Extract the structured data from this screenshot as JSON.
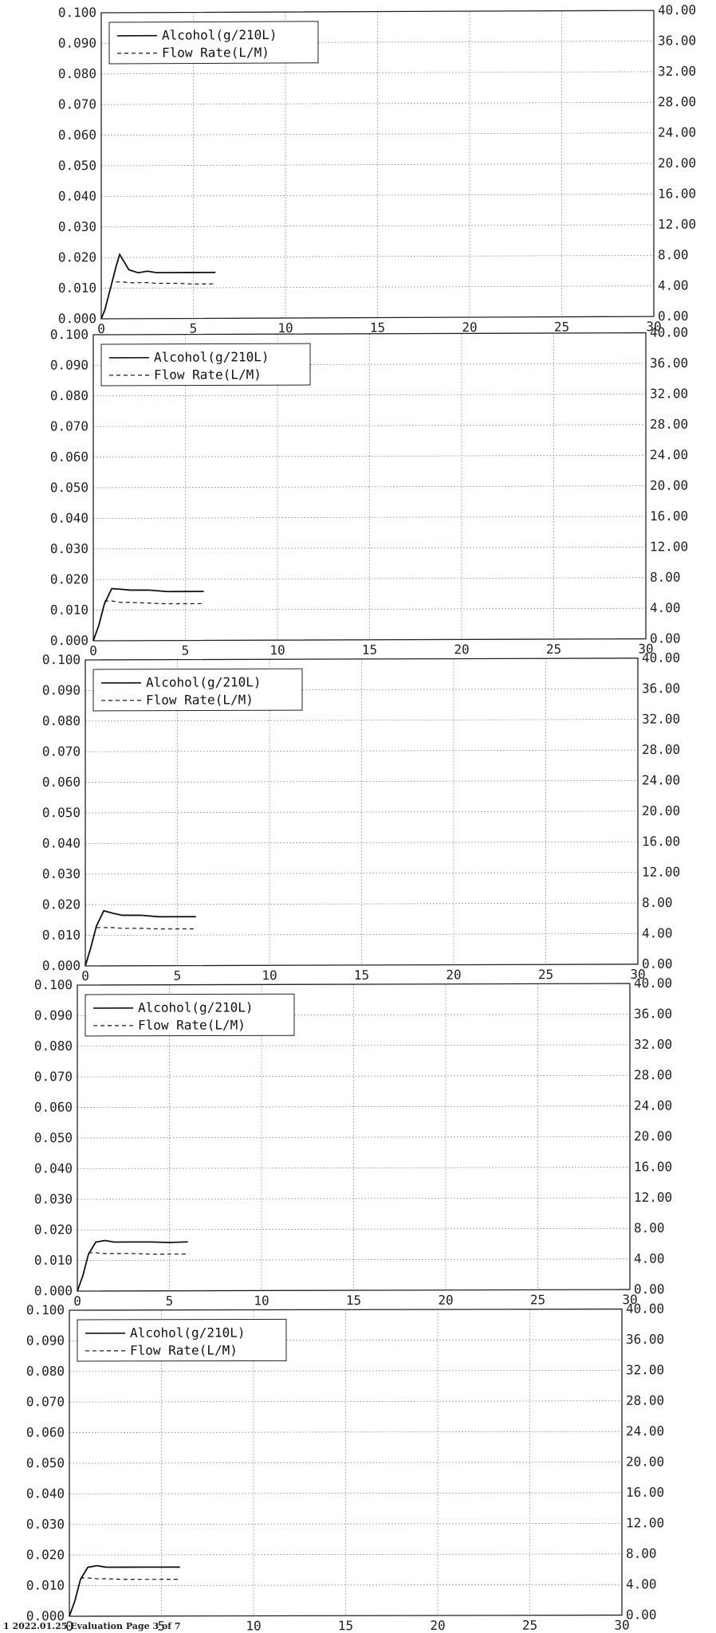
{
  "footer_text": "1 2022.01.25 Evaluation Page 3 of 7",
  "chart_data": [
    {
      "type": "line",
      "x": [
        0,
        0.2,
        0.5,
        0.8,
        1.0,
        1.2,
        1.5,
        2.0,
        2.5,
        3.0,
        4.0,
        5.0,
        6.2
      ],
      "series": [
        {
          "name": "Alcohol(g/210L)",
          "axis": "left",
          "style": "solid",
          "values": [
            0.0,
            0.003,
            0.01,
            0.017,
            0.021,
            0.019,
            0.016,
            0.015,
            0.0155,
            0.015,
            0.015,
            0.015,
            0.015
          ]
        },
        {
          "name": "Flow Rate(L/M)",
          "axis": "right",
          "style": "dashed",
          "values": [
            null,
            null,
            null,
            4.8,
            4.8,
            4.8,
            4.7,
            4.7,
            4.7,
            4.6,
            4.6,
            4.5,
            4.5
          ]
        }
      ],
      "xlim": [
        0,
        30
      ],
      "ylim_left": [
        0,
        0.1
      ],
      "ylim_right": [
        0,
        40
      ],
      "x_ticks": [
        "0",
        "5",
        "10",
        "15",
        "20",
        "25",
        "30"
      ],
      "y_left_ticks": [
        "0.000",
        "0.010",
        "0.020",
        "0.030",
        "0.040",
        "0.050",
        "0.060",
        "0.070",
        "0.080",
        "0.090",
        "0.100"
      ],
      "y_right_ticks": [
        "0.00",
        "4.00",
        "8.00",
        "12.00",
        "16.00",
        "20.00",
        "24.00",
        "28.00",
        "32.00",
        "36.00",
        "40.00"
      ],
      "grid": true,
      "legend": "top-left"
    },
    {
      "type": "line",
      "x": [
        0,
        0.3,
        0.6,
        1.0,
        1.5,
        2.0,
        3.0,
        4.0,
        5.0,
        6.0
      ],
      "series": [
        {
          "name": "Alcohol(g/210L)",
          "axis": "left",
          "style": "solid",
          "values": [
            0.0,
            0.005,
            0.012,
            0.017,
            0.0168,
            0.0165,
            0.0165,
            0.016,
            0.016,
            0.016
          ]
        },
        {
          "name": "Flow Rate(L/M)",
          "axis": "right",
          "style": "dashed",
          "values": [
            null,
            null,
            5.2,
            5.2,
            5.0,
            5.0,
            4.9,
            4.8,
            4.8,
            4.8
          ]
        }
      ],
      "xlim": [
        0,
        30
      ],
      "ylim_left": [
        0,
        0.1
      ],
      "ylim_right": [
        0,
        40
      ],
      "x_ticks": [
        "0",
        "5",
        "10",
        "15",
        "20",
        "25",
        "30"
      ],
      "y_left_ticks": [
        "0.000",
        "0.010",
        "0.020",
        "0.030",
        "0.040",
        "0.050",
        "0.060",
        "0.070",
        "0.080",
        "0.090",
        "0.100"
      ],
      "y_right_ticks": [
        "0.00",
        "4.00",
        "8.00",
        "12.00",
        "16.00",
        "20.00",
        "24.00",
        "28.00",
        "32.00",
        "36.00",
        "40.00"
      ],
      "grid": true,
      "legend": "top-left"
    },
    {
      "type": "line",
      "x": [
        0,
        0.3,
        0.6,
        1.0,
        1.5,
        2.0,
        3.0,
        4.0,
        5.0,
        6.0
      ],
      "series": [
        {
          "name": "Alcohol(g/210L)",
          "axis": "left",
          "style": "solid",
          "values": [
            0.0,
            0.006,
            0.013,
            0.018,
            0.0172,
            0.0165,
            0.0165,
            0.016,
            0.016,
            0.016
          ]
        },
        {
          "name": "Flow Rate(L/M)",
          "axis": "right",
          "style": "dashed",
          "values": [
            null,
            null,
            5.0,
            5.0,
            5.0,
            4.9,
            4.9,
            4.8,
            4.8,
            4.8
          ]
        }
      ],
      "xlim": [
        0,
        30
      ],
      "ylim_left": [
        0,
        0.1
      ],
      "ylim_right": [
        0,
        40
      ],
      "x_ticks": [
        "0",
        "5",
        "10",
        "15",
        "20",
        "25",
        "30"
      ],
      "y_left_ticks": [
        "0.000",
        "0.010",
        "0.020",
        "0.030",
        "0.040",
        "0.050",
        "0.060",
        "0.070",
        "0.080",
        "0.090",
        "0.100"
      ],
      "y_right_ticks": [
        "0.00",
        "4.00",
        "8.00",
        "12.00",
        "16.00",
        "20.00",
        "24.00",
        "28.00",
        "32.00",
        "36.00",
        "40.00"
      ],
      "grid": true,
      "legend": "top-left"
    },
    {
      "type": "line",
      "x": [
        0,
        0.3,
        0.6,
        1.0,
        1.5,
        2.0,
        3.0,
        4.0,
        5.0,
        6.0
      ],
      "series": [
        {
          "name": "Alcohol(g/210L)",
          "axis": "left",
          "style": "solid",
          "values": [
            0.0,
            0.005,
            0.012,
            0.016,
            0.0165,
            0.016,
            0.016,
            0.016,
            0.0158,
            0.016
          ]
        },
        {
          "name": "Flow Rate(L/M)",
          "axis": "right",
          "style": "dashed",
          "values": [
            null,
            null,
            5.0,
            5.0,
            4.9,
            4.9,
            4.9,
            4.8,
            4.8,
            4.8
          ]
        }
      ],
      "xlim": [
        0,
        30
      ],
      "ylim_left": [
        0,
        0.1
      ],
      "ylim_right": [
        0,
        40
      ],
      "x_ticks": [
        "0",
        "5",
        "10",
        "15",
        "20",
        "25",
        "30"
      ],
      "y_left_ticks": [
        "0.000",
        "0.010",
        "0.020",
        "0.030",
        "0.040",
        "0.050",
        "0.060",
        "0.070",
        "0.080",
        "0.090",
        "0.100"
      ],
      "y_right_ticks": [
        "0.00",
        "4.00",
        "8.00",
        "12.00",
        "16.00",
        "20.00",
        "24.00",
        "28.00",
        "32.00",
        "36.00",
        "40.00"
      ],
      "grid": true,
      "legend": "top-left"
    },
    {
      "type": "line",
      "x": [
        0,
        0.3,
        0.6,
        1.0,
        1.5,
        2.0,
        3.0,
        4.0,
        5.0,
        6.0
      ],
      "series": [
        {
          "name": "Alcohol(g/210L)",
          "axis": "left",
          "style": "solid",
          "values": [
            0.0,
            0.005,
            0.012,
            0.016,
            0.0165,
            0.016,
            0.016,
            0.016,
            0.016,
            0.016
          ]
        },
        {
          "name": "Flow Rate(L/M)",
          "axis": "right",
          "style": "dashed",
          "values": [
            null,
            null,
            5.0,
            5.0,
            4.9,
            4.9,
            4.8,
            4.8,
            4.8,
            4.8
          ]
        }
      ],
      "xlim": [
        0,
        30
      ],
      "ylim_left": [
        0,
        0.1
      ],
      "ylim_right": [
        0,
        40
      ],
      "x_ticks": [
        "0",
        "5",
        "10",
        "15",
        "20",
        "25",
        "30"
      ],
      "y_left_ticks": [
        "0.000",
        "0.010",
        "0.020",
        "0.030",
        "0.040",
        "0.050",
        "0.060",
        "0.070",
        "0.080",
        "0.090",
        "0.100"
      ],
      "y_right_ticks": [
        "0.00",
        "4.00",
        "8.00",
        "12.00",
        "16.00",
        "20.00",
        "24.00",
        "28.00",
        "32.00",
        "36.00",
        "40.00"
      ],
      "grid": true,
      "legend": "top-left"
    }
  ]
}
